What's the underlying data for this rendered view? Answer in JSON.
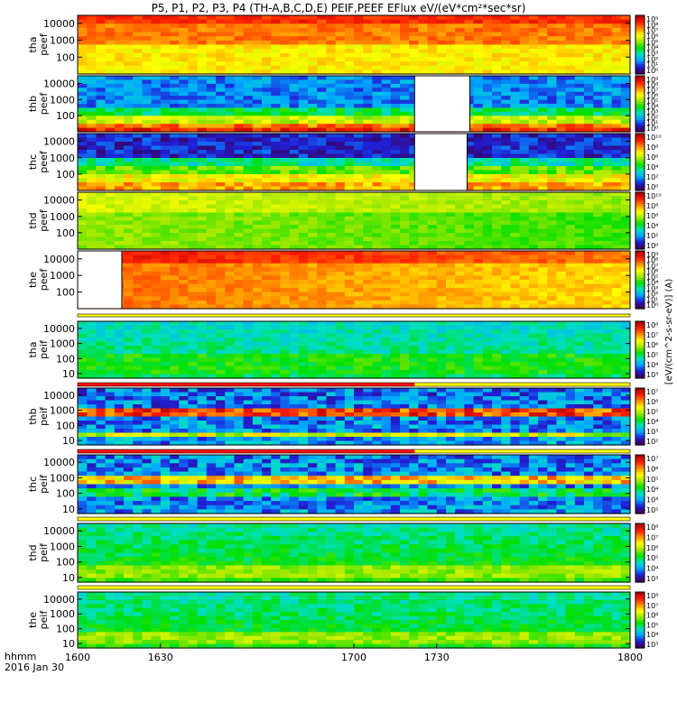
{
  "title": "P5, P1, P2, P3, P4 (TH-A,B,C,D,E) PEIF,PEEF EFlux eV/(eV*cm²*sec*sr)",
  "colorbar_unit": "[eV/(cm^2-s-sr-eV)] (A)",
  "footer": {
    "xlabel": "hhmm",
    "date": "2016 Jan 30"
  },
  "chart_data": {
    "type": "heatmap",
    "x_axis": {
      "range": [
        1600,
        1800
      ],
      "ticks": [
        "1600",
        "1630",
        "1700",
        "1730",
        "1800"
      ]
    },
    "colormap": [
      "#3a005a",
      "#2020d8",
      "#00a8ff",
      "#00e0c0",
      "#00e000",
      "#a0e800",
      "#ffff00",
      "#ff9000",
      "#ff2000",
      "#b00000"
    ],
    "panels": [
      {
        "id": "tha_peef",
        "ylabel": [
          "tha",
          "peef"
        ],
        "yticks": [
          "10000",
          "1000",
          "100"
        ],
        "ytick_values": [
          10000,
          1000,
          100
        ],
        "ylog": [
          10,
          30000
        ],
        "cbar_ticks": [
          "10⁹",
          "10⁸",
          "10⁷",
          "10⁶",
          "10⁵",
          "10⁴",
          "10³",
          "10²",
          "10¹",
          "10⁰"
        ],
        "gaps": [],
        "features": {
          "base": [
            0.72,
            0.76
          ],
          "bands": [
            {
              "range": [
                0.0,
                0.15
              ],
              "value": 0.88
            },
            {
              "range": [
                0.15,
                0.5
              ],
              "value": 0.8
            },
            {
              "range": [
                0.5,
                1.0
              ],
              "value": 0.68
            }
          ],
          "noise": 0.05,
          "x_drift": 0.0
        }
      },
      {
        "id": "thb_peef",
        "ylabel": [
          "thb",
          "peef"
        ],
        "yticks": [
          "10000",
          "1000",
          "100"
        ],
        "ytick_values": [
          10000,
          1000,
          100
        ],
        "ylog": [
          10,
          30000
        ],
        "cbar_ticks": [
          "10⁹",
          "10⁸",
          "10⁷",
          "10⁶",
          "10⁵",
          "10⁴",
          "10³",
          "10²",
          "10¹",
          "10⁰"
        ],
        "gaps": [
          [
            1722,
            1742
          ]
        ],
        "features": {
          "base": [
            0.2,
            0.2
          ],
          "bands": [
            {
              "range": [
                0.6,
                0.75
              ],
              "value": 0.4
            },
            {
              "range": [
                0.75,
                0.85
              ],
              "value": 0.6
            },
            {
              "range": [
                0.85,
                0.95
              ],
              "value": 0.8
            },
            {
              "range": [
                0.95,
                1.0
              ],
              "value": 0.9
            }
          ],
          "noise": 0.08,
          "x_drift": 0.0
        }
      },
      {
        "id": "thc_peef",
        "ylabel": [
          "thc",
          "peef"
        ],
        "yticks": [
          "10000",
          "1000",
          "100"
        ],
        "ytick_values": [
          10000,
          1000,
          100
        ],
        "ylog": [
          10,
          30000
        ],
        "cbar_ticks": [
          "10¹⁰",
          "10⁸",
          "10⁶",
          "10⁴",
          "10²",
          "10⁰"
        ],
        "gaps": [
          [
            1722,
            1741
          ]
        ],
        "features": {
          "base": [
            0.1,
            0.12
          ],
          "bands": [
            {
              "range": [
                0.45,
                0.6
              ],
              "value": 0.35
            },
            {
              "range": [
                0.6,
                0.75
              ],
              "value": 0.5
            },
            {
              "range": [
                0.75,
                0.88
              ],
              "value": 0.65
            },
            {
              "range": [
                0.88,
                1.0
              ],
              "value": 0.75
            }
          ],
          "noise": 0.08,
          "x_drift": 0.0
        }
      },
      {
        "id": "thd_peef",
        "ylabel": [
          "thd",
          "peef"
        ],
        "yticks": [
          "10000",
          "1000",
          "100"
        ],
        "ytick_values": [
          10000,
          1000,
          100
        ],
        "ylog": [
          10,
          30000
        ],
        "cbar_ticks": [
          "10¹⁰",
          "10⁸",
          "10⁶",
          "10⁴",
          "10²",
          "10⁰"
        ],
        "gaps": [],
        "features": {
          "base": [
            0.58,
            0.5
          ],
          "bands": [
            {
              "range": [
                0.0,
                0.35
              ],
              "value": 0.62
            },
            {
              "range": [
                0.35,
                1.0
              ],
              "value": 0.55
            }
          ],
          "noise": 0.04,
          "x_drift": -0.07
        }
      },
      {
        "id": "the_peef",
        "ylabel": [
          "the",
          "peef"
        ],
        "yticks": [
          "10000",
          "1000",
          "100"
        ],
        "ytick_values": [
          10000,
          1000,
          100
        ],
        "ylog": [
          10,
          30000
        ],
        "cbar_ticks": [
          "10⁹",
          "10⁸",
          "10⁷",
          "10⁶",
          "10⁵",
          "10⁴",
          "10³",
          "10²",
          "10¹",
          "10⁰"
        ],
        "gaps": [
          [
            1600,
            1616
          ]
        ],
        "features": {
          "base": [
            0.84,
            0.78
          ],
          "bands": [
            {
              "range": [
                0.0,
                0.25
              ],
              "value": 0.92
            },
            {
              "range": [
                0.25,
                1.0
              ],
              "value": 0.82
            }
          ],
          "noise": 0.04,
          "x_drift": -0.12
        }
      },
      {
        "id": "tha_peif",
        "ylabel": [
          "tha",
          "peif"
        ],
        "yticks": [
          "10000",
          "1000",
          "100",
          "10"
        ],
        "ytick_values": [
          10000,
          1000,
          100,
          10
        ],
        "ylog": [
          5,
          30000
        ],
        "cbar_ticks": [
          "10⁸",
          "10⁷",
          "10⁶",
          "10⁵",
          "10⁴",
          "10³"
        ],
        "gaps": [],
        "features": {
          "base": [
            0.32,
            0.4
          ],
          "bands": [
            {
              "range": [
                0.6,
                0.9
              ],
              "value": 0.45
            }
          ],
          "noise": 0.06,
          "x_drift": 0.0
        }
      },
      {
        "id": "thb_peif",
        "ylabel": [
          "thb",
          "peif"
        ],
        "yticks": [
          "10000",
          "1000",
          "100",
          "10"
        ],
        "ytick_values": [
          10000,
          1000,
          100,
          10
        ],
        "ylog": [
          5,
          30000
        ],
        "cbar_ticks": [
          "10⁷",
          "10⁶",
          "10⁵",
          "10⁴",
          "10³",
          "10²"
        ],
        "gaps": [],
        "features": {
          "base": [
            0.18,
            0.22
          ],
          "bands": [
            {
              "range": [
                0.38,
                0.5
              ],
              "value": 0.85
            },
            {
              "range": [
                0.78,
                0.84
              ],
              "value": 0.6
            }
          ],
          "noise": 0.12,
          "x_drift": 0.0
        }
      },
      {
        "id": "thc_peif",
        "ylabel": [
          "thc",
          "peif"
        ],
        "yticks": [
          "10000",
          "1000",
          "100",
          "10"
        ],
        "ytick_values": [
          10000,
          1000,
          100,
          10
        ],
        "ylog": [
          5,
          30000
        ],
        "cbar_ticks": [
          "10⁷",
          "10⁶",
          "10⁵",
          "10⁴",
          "10³",
          "10²"
        ],
        "gaps": [],
        "features": {
          "base": [
            0.2,
            0.22
          ],
          "bands": [
            {
              "range": [
                0.38,
                0.48
              ],
              "value": 0.72
            },
            {
              "range": [
                0.55,
                0.7
              ],
              "value": 0.4
            }
          ],
          "noise": 0.12,
          "x_drift": 0.0
        }
      },
      {
        "id": "thd_peif",
        "ylabel": [
          "thd",
          "peif"
        ],
        "yticks": [
          "10000",
          "1000",
          "100",
          "10"
        ],
        "ytick_values": [
          10000,
          1000,
          100,
          10
        ],
        "ylog": [
          5,
          30000
        ],
        "cbar_ticks": [
          "10⁸",
          "10⁷",
          "10⁶",
          "10⁵",
          "10⁴",
          "10³"
        ],
        "gaps": [],
        "features": {
          "base": [
            0.35,
            0.48
          ],
          "bands": [
            {
              "range": [
                0.7,
                0.95
              ],
              "value": 0.55
            }
          ],
          "noise": 0.06,
          "x_drift": 0.0
        }
      },
      {
        "id": "the_peif",
        "ylabel": [
          "the",
          "peif"
        ],
        "yticks": [
          "10000",
          "1000",
          "100",
          "10"
        ],
        "ytick_values": [
          10000,
          1000,
          100,
          10
        ],
        "ylog": [
          5,
          30000
        ],
        "cbar_ticks": [
          "10⁸",
          "10⁷",
          "10⁶",
          "10⁵",
          "10⁴",
          "10³"
        ],
        "gaps": [],
        "features": {
          "base": [
            0.35,
            0.46
          ],
          "bands": [
            {
              "range": [
                0.7,
                0.95
              ],
              "value": 0.55
            }
          ],
          "noise": 0.06,
          "x_drift": 0.0
        }
      }
    ]
  }
}
